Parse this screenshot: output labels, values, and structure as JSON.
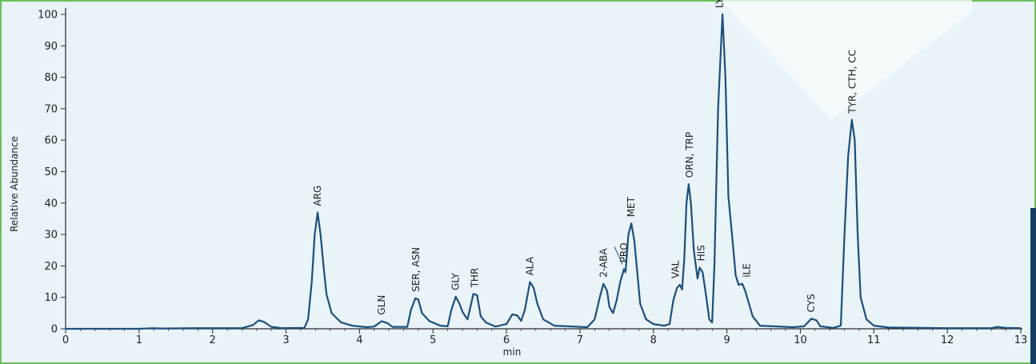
{
  "chart_data": {
    "type": "line",
    "title": "",
    "xlabel": "min",
    "ylabel": "Relative Abundance",
    "xlim": [
      0,
      13
    ],
    "ylim": [
      0,
      100
    ],
    "x_ticks": [
      0,
      1,
      2,
      3,
      4,
      5,
      6,
      7,
      8,
      9,
      10,
      11,
      12,
      13
    ],
    "y_ticks": [
      0,
      10,
      20,
      30,
      40,
      50,
      60,
      70,
      80,
      90,
      100
    ],
    "grid": false,
    "legend": "none",
    "line_color": "#1d4f7c",
    "series": [
      {
        "values": [
          [
            0,
            0
          ],
          [
            1.0,
            0
          ],
          [
            1.2,
            0.2
          ],
          [
            1.3,
            0.1
          ],
          [
            1.75,
            0.2
          ],
          [
            2.4,
            0.2
          ],
          [
            2.55,
            1.2
          ],
          [
            2.63,
            2.7
          ],
          [
            2.7,
            2.2
          ],
          [
            2.8,
            0.6
          ],
          [
            2.95,
            0.2
          ],
          [
            3.25,
            0.3
          ],
          [
            3.3,
            3
          ],
          [
            3.35,
            15
          ],
          [
            3.39,
            30
          ],
          [
            3.43,
            37
          ],
          [
            3.47,
            30
          ],
          [
            3.51,
            20
          ],
          [
            3.55,
            11
          ],
          [
            3.62,
            5
          ],
          [
            3.75,
            2
          ],
          [
            3.9,
            1
          ],
          [
            4.1,
            0.5
          ],
          [
            4.2,
            0.7
          ],
          [
            4.3,
            2.4
          ],
          [
            4.38,
            1.8
          ],
          [
            4.45,
            0.6
          ],
          [
            4.65,
            0.6
          ],
          [
            4.7,
            6
          ],
          [
            4.76,
            9.7
          ],
          [
            4.8,
            9.3
          ],
          [
            4.85,
            5
          ],
          [
            4.95,
            2.5
          ],
          [
            5.1,
            1
          ],
          [
            5.2,
            0.8
          ],
          [
            5.25,
            6
          ],
          [
            5.31,
            10.2
          ],
          [
            5.36,
            8
          ],
          [
            5.4,
            5.5
          ],
          [
            5.44,
            4
          ],
          [
            5.47,
            3
          ],
          [
            5.5,
            6
          ],
          [
            5.55,
            11.1
          ],
          [
            5.6,
            10.7
          ],
          [
            5.65,
            4
          ],
          [
            5.72,
            2
          ],
          [
            5.85,
            0.7
          ],
          [
            6.0,
            1.5
          ],
          [
            6.08,
            4.6
          ],
          [
            6.15,
            4.2
          ],
          [
            6.2,
            2.5
          ],
          [
            6.25,
            6
          ],
          [
            6.32,
            14.9
          ],
          [
            6.37,
            13
          ],
          [
            6.42,
            8
          ],
          [
            6.5,
            3
          ],
          [
            6.65,
            1
          ],
          [
            7.1,
            0.5
          ],
          [
            7.2,
            3
          ],
          [
            7.27,
            10
          ],
          [
            7.32,
            14.3
          ],
          [
            7.37,
            12
          ],
          [
            7.4,
            7
          ],
          [
            7.45,
            5
          ],
          [
            7.5,
            9
          ],
          [
            7.55,
            15
          ],
          [
            7.6,
            19
          ],
          [
            7.62,
            18
          ],
          [
            7.66,
            30
          ],
          [
            7.7,
            33.5
          ],
          [
            7.74,
            28
          ],
          [
            7.78,
            18
          ],
          [
            7.82,
            8
          ],
          [
            7.9,
            3
          ],
          [
            8.0,
            1.5
          ],
          [
            8.15,
            1
          ],
          [
            8.22,
            1.5
          ],
          [
            8.27,
            9
          ],
          [
            8.32,
            13
          ],
          [
            8.36,
            14
          ],
          [
            8.39,
            12.5
          ],
          [
            8.42,
            22
          ],
          [
            8.45,
            40
          ],
          [
            8.48,
            46
          ],
          [
            8.51,
            40
          ],
          [
            8.55,
            25
          ],
          [
            8.6,
            16
          ],
          [
            8.63,
            19.5
          ],
          [
            8.67,
            18
          ],
          [
            8.72,
            10
          ],
          [
            8.76,
            3
          ],
          [
            8.8,
            2
          ],
          [
            8.83,
            20
          ],
          [
            8.88,
            70
          ],
          [
            8.94,
            100
          ],
          [
            8.98,
            80
          ],
          [
            9.02,
            42
          ],
          [
            9.07,
            30
          ],
          [
            9.12,
            17
          ],
          [
            9.16,
            14
          ],
          [
            9.21,
            14.3
          ],
          [
            9.25,
            12
          ],
          [
            9.3,
            8
          ],
          [
            9.35,
            4
          ],
          [
            9.45,
            1
          ],
          [
            9.9,
            0.5
          ],
          [
            10.05,
            0.8
          ],
          [
            10.15,
            3.2
          ],
          [
            10.22,
            2.7
          ],
          [
            10.27,
            0.8
          ],
          [
            10.45,
            0.3
          ],
          [
            10.55,
            1
          ],
          [
            10.6,
            30
          ],
          [
            10.65,
            55
          ],
          [
            10.7,
            66.5
          ],
          [
            10.74,
            60
          ],
          [
            10.78,
            30
          ],
          [
            10.82,
            10
          ],
          [
            10.9,
            3
          ],
          [
            11.0,
            1
          ],
          [
            11.2,
            0.4
          ],
          [
            12.0,
            0.2
          ],
          [
            12.6,
            0.2
          ],
          [
            12.68,
            0.6
          ],
          [
            12.8,
            0.3
          ],
          [
            13,
            0.2
          ]
        ]
      }
    ],
    "peak_labels": [
      {
        "text": "ARG",
        "x": 3.43,
        "y": 37
      },
      {
        "text": "GLN",
        "x": 4.3,
        "y": 2.4
      },
      {
        "text": "SER, ASN",
        "x": 4.77,
        "y": 9.7
      },
      {
        "text": "GLY",
        "x": 5.31,
        "y": 10.2
      },
      {
        "text": "THR",
        "x": 5.57,
        "y": 11.1
      },
      {
        "text": "ALA",
        "x": 6.32,
        "y": 14.9
      },
      {
        "text": "2-ABA",
        "x": 7.32,
        "y": 14.3
      },
      {
        "text": "PRO",
        "x": 7.6,
        "y": 19
      },
      {
        "text": "MET",
        "x": 7.7,
        "y": 33.5
      },
      {
        "text": "VAL",
        "x": 8.3,
        "y": 14
      },
      {
        "text": "ORN, TRP",
        "x": 8.49,
        "y": 46
      },
      {
        "text": "HIS",
        "x": 8.65,
        "y": 19.5
      },
      {
        "text": "LYS, PHE, ASP, LEU, GLU",
        "x": 8.9,
        "y": 100
      },
      {
        "text": "iLE",
        "x": 9.27,
        "y": 14.3
      },
      {
        "text": "CYS",
        "x": 10.15,
        "y": 3.2
      },
      {
        "text": "TYR, CTH, CC",
        "x": 10.71,
        "y": 66.5
      }
    ]
  }
}
